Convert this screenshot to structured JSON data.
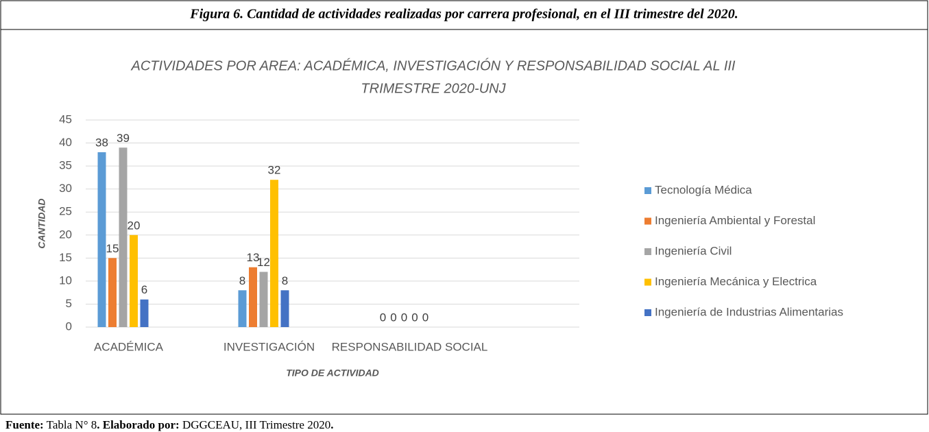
{
  "figure_caption": "Figura 6. Cantidad de actividades realizadas por carrera profesional, en el III trimestre del 2020.",
  "chart_data": {
    "type": "bar",
    "title": [
      "ACTIVIDADES POR AREA: ACADÉMICA, INVESTIGACIÓN Y RESPONSABILIDAD SOCIAL AL III",
      "TRIMESTRE 2020-UNJ"
    ],
    "x_label": "TIPO DE ACTIVIDAD",
    "y_label": "CANTIDAD",
    "categories": [
      "ACADÉMICA",
      "INVESTIGACIÓN",
      "RESPONSABILIDAD SOCIAL"
    ],
    "series": [
      {
        "name": "Tecnología Médica",
        "color": "#5b9bd5",
        "values": [
          38,
          8,
          0
        ]
      },
      {
        "name": "Ingeniería Ambiental y Forestal",
        "color": "#ed7d31",
        "values": [
          15,
          13,
          0
        ]
      },
      {
        "name": "Ingeniería Civil",
        "color": "#a5a5a5",
        "values": [
          39,
          12,
          0
        ]
      },
      {
        "name": "Ingeniería Mecánica y Electrica",
        "color": "#ffc000",
        "values": [
          20,
          32,
          0
        ]
      },
      {
        "name": "Ingeniería de Industrias Alimentarias",
        "color": "#4472c4",
        "values": [
          6,
          8,
          0
        ]
      }
    ],
    "ylim": [
      0,
      45
    ],
    "yticks": [
      0,
      5,
      10,
      15,
      20,
      25,
      30,
      35,
      40,
      45
    ],
    "grid": true,
    "legend": "right"
  },
  "source": [
    {
      "text": "Fuente:",
      "bold": true
    },
    {
      "text": " Tabla N° 8",
      "bold": false
    },
    {
      "text": ". Elaborado por:",
      "bold": true
    },
    {
      "text": " DGGCEAU, III Trimestre 2020",
      "bold": false
    },
    {
      "text": ".",
      "bold": true
    }
  ]
}
